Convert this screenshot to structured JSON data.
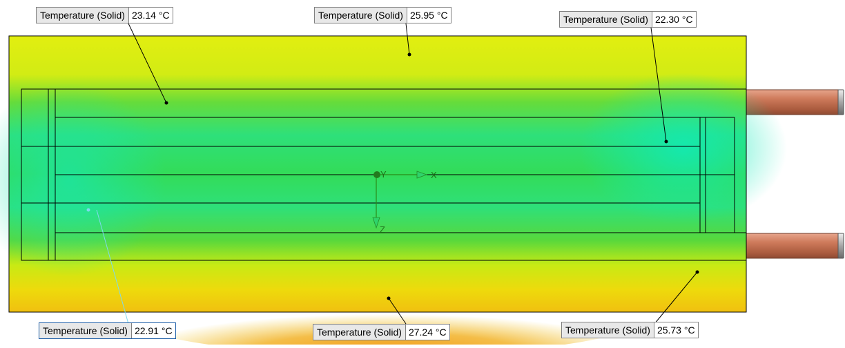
{
  "probes": [
    {
      "name": "Temperature (Solid)",
      "value": "23.14 °C"
    },
    {
      "name": "Temperature (Solid)",
      "value": "25.95 °C"
    },
    {
      "name": "Temperature (Solid)",
      "value": "22.30 °C"
    },
    {
      "name": "Temperature (Solid)",
      "value": "22.91 °C"
    },
    {
      "name": "Temperature (Solid)",
      "value": "27.24 °C"
    },
    {
      "name": "Temperature (Solid)",
      "value": "25.73 °C"
    }
  ],
  "triad": {
    "x_label": "X",
    "y_label": "Y",
    "z_label": "Z"
  },
  "colors": {
    "field_cool": "#19e68c",
    "field_mid": "#33d944",
    "field_warm": "#e6ee0a",
    "field_hot": "#f29a0c",
    "pipe": "#c8775a",
    "leader": "#000000",
    "selected_leader": "#7fd9ee"
  }
}
